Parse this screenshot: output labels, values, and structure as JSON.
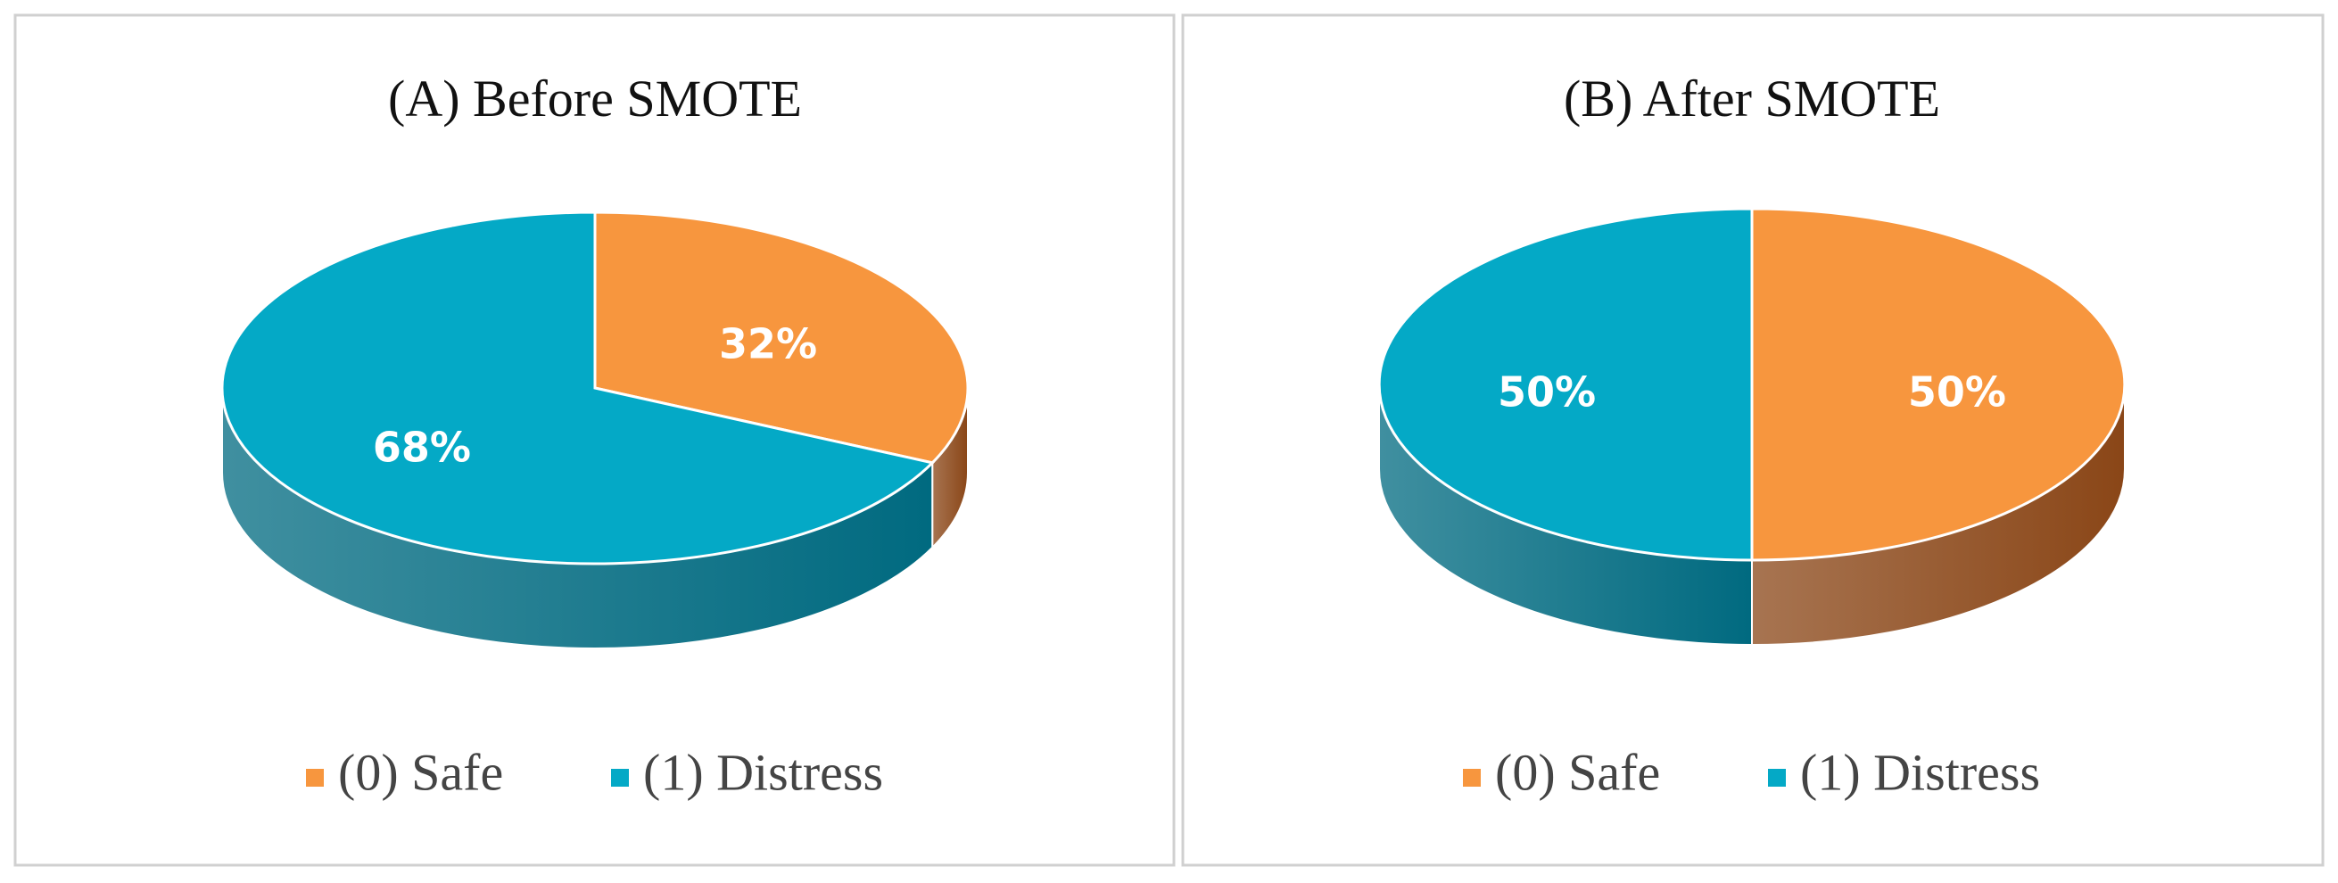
{
  "chart_data": [
    {
      "type": "pie",
      "title": "(A) Before SMOTE",
      "categories": [
        "(0) Safe",
        "(1) Distress"
      ],
      "values": [
        32,
        68
      ],
      "value_labels": [
        "32%",
        "68%"
      ],
      "colors": [
        "#f7963e",
        "#04a9c6"
      ],
      "side_colors": [
        "#8a4617",
        "#006a80"
      ]
    },
    {
      "type": "pie",
      "title": "(B) After SMOTE",
      "categories": [
        "(0) Safe",
        "(1) Distress"
      ],
      "values": [
        50,
        50
      ],
      "value_labels": [
        "50%",
        "50%"
      ],
      "colors": [
        "#f7963e",
        "#04a9c6"
      ],
      "side_colors": [
        "#8a4617",
        "#006a80"
      ]
    }
  ]
}
